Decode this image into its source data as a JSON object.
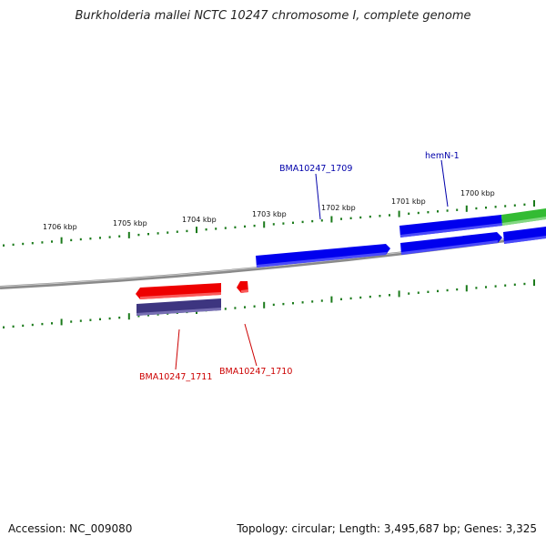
{
  "title": "Burkholderia mallei NCTC 10247 chromosome I, complete genome",
  "footer": {
    "accession": "Accession: NC_009080",
    "summary": "Topology: circular; Length: 3,495,687 bp; Genes: 3,325"
  },
  "tick_labels": [
    "1706 kbp",
    "1705 kbp",
    "1704 kbp",
    "1703 kbp",
    "1702 kbp",
    "1701 kbp",
    "1700 kbp"
  ],
  "gene_labels": [
    "BMA10247_1709",
    "hemN-1",
    "BMA10247_1711",
    "BMA10247_1710"
  ],
  "colors": {
    "forward_gene": "#0000ee",
    "reverse_gene": "#ee0000",
    "rna_gene": "#33bb33",
    "reverse_cds": "#3d3580",
    "ticks": "#1a7a1a",
    "backbone": "#808080",
    "forward_label": "#0000aa",
    "reverse_label": "#cc0000"
  }
}
